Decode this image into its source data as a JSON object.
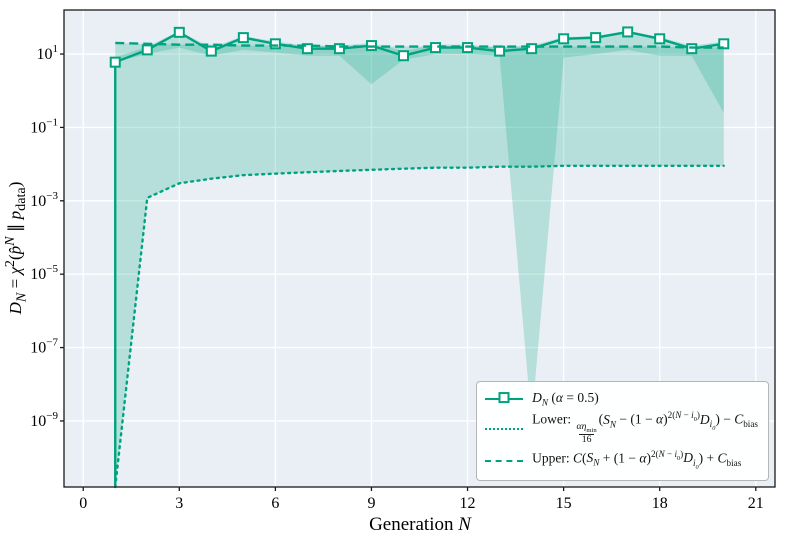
{
  "figure": {
    "xlabel_html": "Generation <i>N</i>",
    "ylabel_html": "<i>D<sub>N</sub></i> = <i>χ</i><sup>2</sup>(<i>p̂</i><sup><i>N</i></sup> ∥ <i>p</i><sub>data</sub>)"
  },
  "legend": {
    "entries": [
      {
        "label_html": "<i>D<sub>N</sub></i> (<i>α</i> = 0.5)"
      },
      {
        "label_html": "Lower: <span class='frac'><span class='fnum'><i>αη</i><sub>min</sub></span><span class='fden'>16</span></span>(<i>S<sub>N</sub></i> − (1 − <i>α</i>)<sup>2(<i>N</i> − <i>i</i><sub>0</sub>)</sup><i>D<sub>i<sub>0</sub></sub></i>) − <i>C</i><sub>bias</sub>"
      },
      {
        "label_html": "Upper: <i>C</i>(<i>S<sub>N</sub></i> + (1 − <i>α</i>)<sup>2(<i>N</i> − <i>i</i><sub>0</sub>)</sup><i>D<sub>i<sub>0</sub></sub></i>) + <i>C</i><sub>bias</sub>"
      }
    ]
  },
  "chart_data": {
    "type": "line",
    "title": "",
    "xlabel": "Generation N",
    "ylabel": "D_N = chi^2(p-hat^N || p_data)",
    "legend_labels": [
      "D_N (alpha = 0.5)",
      "Lower: (alpha*eta_min/16)(S_N - (1-alpha)^(2(N-i0)) D_i0) - C_bias",
      "Upper: C(S_N + (1-alpha)^(2(N-i0)) D_i0) + C_bias"
    ],
    "x_ticks": [
      0,
      3,
      6,
      9,
      12,
      15,
      18,
      21
    ],
    "y_tick_base": "10",
    "y_tick_exponents": [
      1,
      -1,
      -3,
      -5,
      -7,
      -9
    ],
    "xlim": [
      -0.6,
      21.6
    ],
    "ylim_exponents": [
      -10.8,
      2.2
    ],
    "grid": true,
    "legend_position": "lower right",
    "x": [
      1,
      2,
      3,
      4,
      5,
      6,
      7,
      8,
      9,
      10,
      11,
      12,
      13,
      14,
      15,
      16,
      17,
      18,
      19,
      20
    ],
    "series": [
      {
        "id": "dn-line",
        "name": "D_N (alpha = 0.5)",
        "style": "solid",
        "marker": "square",
        "rise_from_bottom": true,
        "values": [
          6,
          13,
          39,
          12,
          28,
          19,
          14,
          14,
          17,
          9,
          15,
          15,
          12,
          14,
          26,
          28,
          40,
          26,
          14,
          19
        ]
      },
      {
        "id": "lower-bound-line",
        "name": "Lower bound",
        "style": "dotted",
        "values": [
          1e-11,
          0.0012,
          0.003,
          0.004,
          0.005,
          0.0055,
          0.006,
          0.0065,
          0.007,
          0.0075,
          0.008,
          0.008,
          0.0085,
          0.0085,
          0.009,
          0.009,
          0.009,
          0.009,
          0.009,
          0.009
        ]
      },
      {
        "id": "upper-bound-line",
        "name": "Upper bound",
        "style": "dashed",
        "values": [
          20,
          19,
          18,
          18,
          17,
          17,
          17,
          16,
          16,
          16,
          16,
          16,
          16,
          16,
          16,
          16,
          16,
          16,
          15,
          15
        ]
      }
    ],
    "bands": [
      {
        "name": "bound-envelope-band",
        "lower": [
          1e-11,
          0.0012,
          0.003,
          0.004,
          0.005,
          0.0055,
          0.006,
          0.0065,
          0.007,
          0.0075,
          0.008,
          0.008,
          0.0085,
          0.0085,
          0.009,
          0.009,
          0.009,
          0.009,
          0.009,
          0.009
        ],
        "upper": [
          20,
          19,
          18,
          18,
          17,
          17,
          17,
          16,
          16,
          16,
          16,
          16,
          16,
          16,
          16,
          16,
          16,
          16,
          15,
          15
        ]
      },
      {
        "name": "run-minmax-band",
        "lower": [
          6,
          10,
          15,
          9,
          13,
          11,
          9,
          9,
          1.5,
          7,
          10,
          10,
          9,
          1e-09,
          8,
          10,
          13,
          9,
          9,
          0.25
        ],
        "upper": [
          8,
          16,
          42,
          15,
          31,
          22,
          17,
          17,
          20,
          12,
          18,
          18,
          15,
          17,
          29,
          31,
          43,
          29,
          17,
          22
        ]
      }
    ],
    "colors": {
      "accent": "#00a37f",
      "fill_opacity": 0.22,
      "plot_bg": "#e9eff5",
      "grid": "#ffffff",
      "frame": "#1a1a1a"
    }
  }
}
